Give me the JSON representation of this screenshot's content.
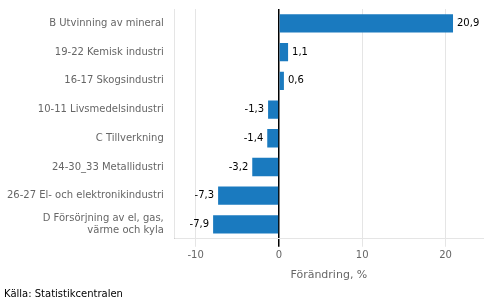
{
  "chart_data": {
    "type": "bar",
    "orientation": "horizontal",
    "categories": [
      "D Försörjning av el, gas,\nvärme och kyla",
      "26-27 El- och elektronikindustri",
      "24-30_33 Metallidustri",
      "C Tillverkning",
      "10-11 Livsmedelsindustri",
      "16-17 Skogsindustri",
      "19-22 Kemisk industri",
      "B Utvinning av mineral"
    ],
    "values": [
      -7.9,
      -7.3,
      -3.2,
      -1.4,
      -1.3,
      0.6,
      1.1,
      20.9
    ],
    "value_labels": [
      "-7,9",
      "-7,3",
      "-3,2",
      "-1,4",
      "-1,3",
      "0,6",
      "1,1",
      "20,9"
    ],
    "data_labels": true,
    "color": "#1a7abf",
    "xlabel": "Förändring, %",
    "xlim": [
      -12.5,
      24.5
    ],
    "xticks": [
      -10,
      0,
      10,
      20
    ],
    "grid": true,
    "annotations": [
      "Källa: Statistikcentralen"
    ]
  }
}
